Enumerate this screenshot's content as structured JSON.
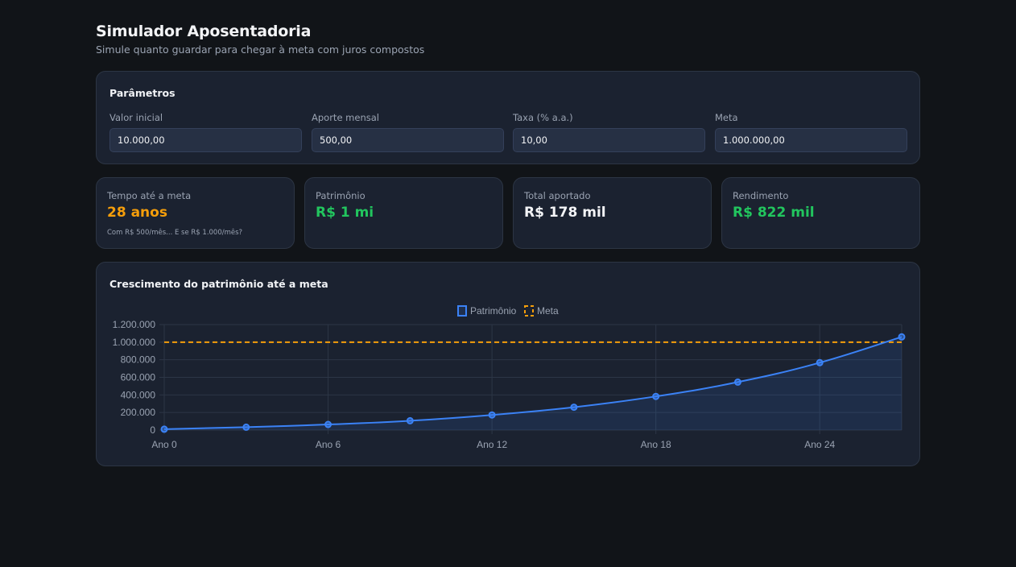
{
  "header": {
    "title": "Simulador Aposentadoria",
    "subtitle": "Simule quanto guardar para chegar à meta com juros compostos"
  },
  "params": {
    "title": "Parâmetros",
    "fields": [
      {
        "label": "Valor inicial",
        "value": "10.000,00"
      },
      {
        "label": "Aporte mensal",
        "value": "500,00"
      },
      {
        "label": "Taxa (% a.a.)",
        "value": "10,00"
      },
      {
        "label": "Meta",
        "value": "1.000.000,00"
      }
    ]
  },
  "stats": [
    {
      "label": "Tempo até a meta",
      "value": "28 anos",
      "note": "Com R$ 500/mês... E se R$ 1.000/mês?",
      "color": "#f59e0b"
    },
    {
      "label": "Patrimônio",
      "value": "R$ 1 mi",
      "color": "#22c55e"
    },
    {
      "label": "Total aportado",
      "value": "R$ 178 mil",
      "color": "#f3f4f6"
    },
    {
      "label": "Rendimento",
      "value": "R$ 822 mil",
      "color": "#22c55e"
    }
  ],
  "chart": {
    "title": "Crescimento do patrimônio até a meta",
    "legend": {
      "patrimonio": "Patrimônio",
      "meta": "Meta"
    },
    "colors": {
      "patrimonio": "#3b82f6",
      "meta": "#f59e0b",
      "grid": "#2c3646",
      "tick": "#9aa3b2"
    }
  },
  "chart_data": {
    "type": "line",
    "x": [
      0,
      3,
      6,
      9,
      12,
      15,
      18,
      21,
      24,
      27
    ],
    "x_tick_labels": [
      "Ano 0",
      "Ano 6",
      "Ano 12",
      "Ano 18",
      "Ano 24"
    ],
    "x_tick_values": [
      0,
      6,
      12,
      18,
      24
    ],
    "xlim": [
      0,
      27
    ],
    "ylim": [
      0,
      1200000
    ],
    "y_tick_values": [
      0,
      200000,
      400000,
      600000,
      800000,
      1000000,
      1200000
    ],
    "y_tick_labels": [
      "0",
      "200.000",
      "400.000",
      "600.000",
      "800.000",
      "1.000.000",
      "1.200.000"
    ],
    "series": [
      {
        "name": "Patrimônio",
        "values": [
          10000,
          33000,
          64000,
          106000,
          172000,
          260000,
          383000,
          546000,
          767000,
          1060000
        ],
        "style": "solid",
        "fill": true
      },
      {
        "name": "Meta",
        "values": [
          1000000,
          1000000,
          1000000,
          1000000,
          1000000,
          1000000,
          1000000,
          1000000,
          1000000,
          1000000
        ],
        "style": "dashed"
      }
    ],
    "legend_position": "top-center",
    "grid": true
  }
}
